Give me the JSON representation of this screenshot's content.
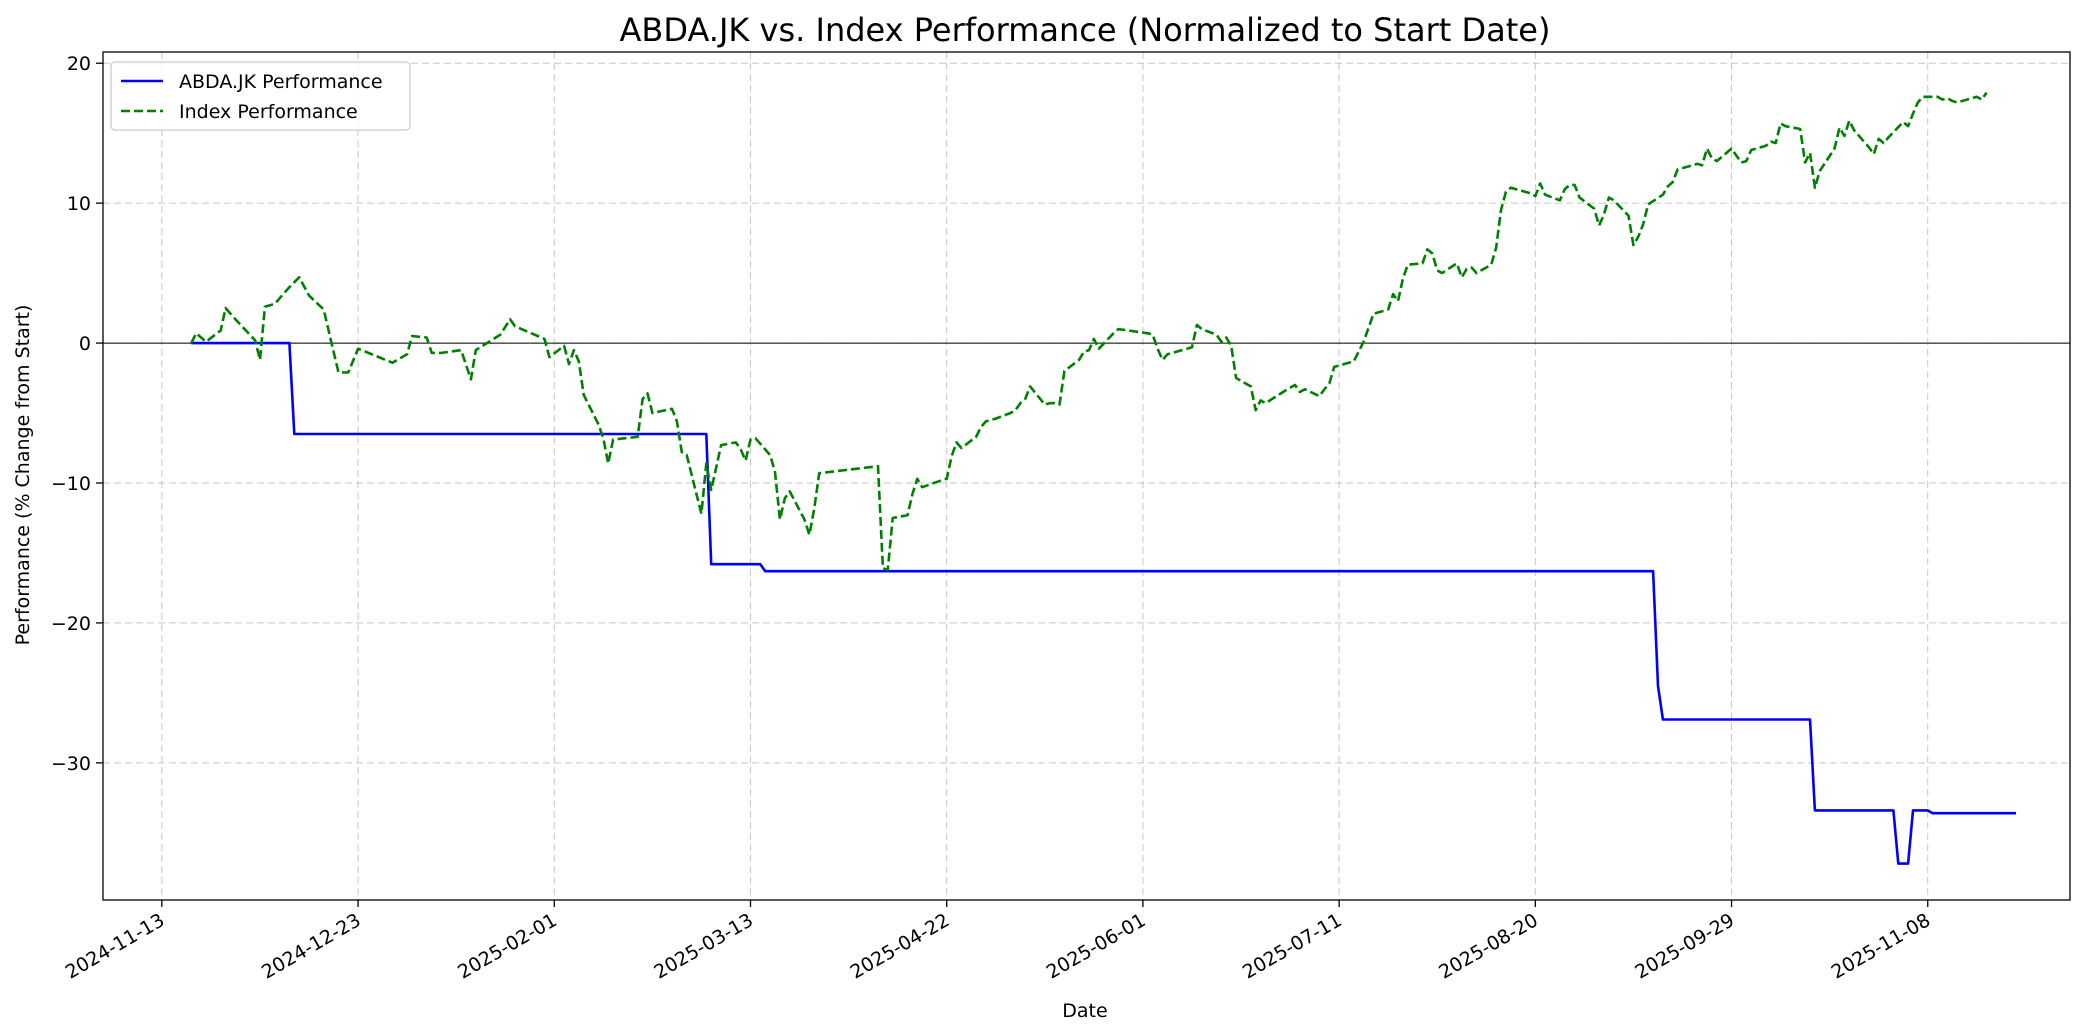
{
  "chart_data": {
    "type": "line",
    "title": "ABDA.JK vs. Index Performance (Normalized to Start Date)",
    "xlabel": "Date",
    "ylabel": "Performance (% Change from Start)",
    "x_range": [
      "2024-11-01",
      "2025-12-07"
    ],
    "ylim": [
      -39.8,
      20.8
    ],
    "x_ticks": [
      "2024-11-13",
      "2024-12-23",
      "2025-02-01",
      "2025-03-13",
      "2025-04-22",
      "2025-06-01",
      "2025-07-11",
      "2025-08-20",
      "2025-09-29",
      "2025-11-08"
    ],
    "y_ticks": [
      20,
      10,
      0,
      -10,
      -20,
      -30
    ],
    "y_tick_labels": [
      "20",
      "10",
      "0",
      "−10",
      "−20",
      "−30"
    ],
    "grid": true,
    "zero_line": true,
    "legend_position": "top-left",
    "series": [
      {
        "name": "ABDA.JK Performance",
        "color": "#0000ff",
        "style": "solid",
        "points": [
          [
            "2024-11-19",
            0
          ],
          [
            "2024-12-09",
            0
          ],
          [
            "2024-12-10",
            -6.5
          ],
          [
            "2025-03-04",
            -6.5
          ],
          [
            "2025-03-05",
            -15.8
          ],
          [
            "2025-03-15",
            -15.8
          ],
          [
            "2025-03-16",
            -16.3
          ],
          [
            "2025-09-13",
            -16.3
          ],
          [
            "2025-09-14",
            -24.5
          ],
          [
            "2025-09-15",
            -26.9
          ],
          [
            "2025-10-15",
            -26.9
          ],
          [
            "2025-10-16",
            -33.4
          ],
          [
            "2025-11-01",
            -33.4
          ],
          [
            "2025-11-02",
            -37.2
          ],
          [
            "2025-11-04",
            -37.2
          ],
          [
            "2025-11-05",
            -33.4
          ],
          [
            "2025-11-08",
            -33.4
          ],
          [
            "2025-11-09",
            -33.6
          ],
          [
            "2025-11-26",
            -33.6
          ]
        ]
      },
      {
        "name": "Index Performance",
        "color": "#008000",
        "style": "dashed",
        "points": [
          [
            "2024-11-19",
            0
          ],
          [
            "2024-11-20",
            0.7
          ],
          [
            "2024-11-22",
            0.1
          ],
          [
            "2024-11-25",
            0.9
          ],
          [
            "2024-11-26",
            2.5
          ],
          [
            "2024-11-28",
            1.7
          ],
          [
            "2024-12-02",
            0.2
          ],
          [
            "2024-12-03",
            -1.2
          ],
          [
            "2024-12-04",
            2.6
          ],
          [
            "2024-12-06",
            2.8
          ],
          [
            "2024-12-09",
            4.0
          ],
          [
            "2024-12-11",
            4.7
          ],
          [
            "2024-12-13",
            3.4
          ],
          [
            "2024-12-16",
            2.4
          ],
          [
            "2024-12-18",
            -0.6
          ],
          [
            "2024-12-19",
            -2.1
          ],
          [
            "2024-12-21",
            -2.1
          ],
          [
            "2024-12-23",
            -0.4
          ],
          [
            "2024-12-30",
            -1.4
          ],
          [
            "2025-01-02",
            -0.8
          ],
          [
            "2025-01-03",
            0.5
          ],
          [
            "2025-01-06",
            0.4
          ],
          [
            "2025-01-07",
            -0.7
          ],
          [
            "2025-01-09",
            -0.7
          ],
          [
            "2025-01-13",
            -0.5
          ],
          [
            "2025-01-15",
            -2.6
          ],
          [
            "2025-01-16",
            -0.5
          ],
          [
            "2025-01-21",
            0.6
          ],
          [
            "2025-01-23",
            1.7
          ],
          [
            "2025-01-24",
            1.2
          ],
          [
            "2025-01-30",
            0.3
          ],
          [
            "2025-01-31",
            -1.0
          ],
          [
            "2025-02-03",
            -0.2
          ],
          [
            "2025-02-04",
            -1.5
          ],
          [
            "2025-02-05",
            -0.5
          ],
          [
            "2025-02-06",
            -1.3
          ],
          [
            "2025-02-07",
            -3.7
          ],
          [
            "2025-02-10",
            -5.8
          ],
          [
            "2025-02-11",
            -6.8
          ],
          [
            "2025-02-12",
            -8.6
          ],
          [
            "2025-02-13",
            -6.9
          ],
          [
            "2025-02-18",
            -6.7
          ],
          [
            "2025-02-19",
            -4.0
          ],
          [
            "2025-02-20",
            -3.6
          ],
          [
            "2025-02-21",
            -5.0
          ],
          [
            "2025-02-25",
            -4.7
          ],
          [
            "2025-02-26",
            -5.6
          ],
          [
            "2025-02-27",
            -7.8
          ],
          [
            "2025-02-28",
            -8.0
          ],
          [
            "2025-03-03",
            -12.2
          ],
          [
            "2025-03-04",
            -8.6
          ],
          [
            "2025-03-05",
            -10.5
          ],
          [
            "2025-03-07",
            -7.3
          ],
          [
            "2025-03-10",
            -7.1
          ],
          [
            "2025-03-11",
            -7.6
          ],
          [
            "2025-03-12",
            -8.4
          ],
          [
            "2025-03-13",
            -6.9
          ],
          [
            "2025-03-14",
            -6.8
          ],
          [
            "2025-03-17",
            -8.0
          ],
          [
            "2025-03-18",
            -9.2
          ],
          [
            "2025-03-19",
            -12.6
          ],
          [
            "2025-03-20",
            -11.1
          ],
          [
            "2025-03-21",
            -10.6
          ],
          [
            "2025-03-24",
            -12.6
          ],
          [
            "2025-03-25",
            -13.7
          ],
          [
            "2025-03-26",
            -11.8
          ],
          [
            "2025-03-27",
            -9.3
          ],
          [
            "2025-04-08",
            -8.8
          ],
          [
            "2025-04-09",
            -16.1
          ],
          [
            "2025-04-10",
            -16.2
          ],
          [
            "2025-04-11",
            -12.5
          ],
          [
            "2025-04-14",
            -12.3
          ],
          [
            "2025-04-15",
            -10.8
          ],
          [
            "2025-04-16",
            -9.7
          ],
          [
            "2025-04-17",
            -10.3
          ],
          [
            "2025-04-21",
            -9.8
          ],
          [
            "2025-04-22",
            -9.7
          ],
          [
            "2025-04-23",
            -8.1
          ],
          [
            "2025-04-24",
            -7.1
          ],
          [
            "2025-04-25",
            -7.5
          ],
          [
            "2025-04-28",
            -6.7
          ],
          [
            "2025-04-29",
            -6.0
          ],
          [
            "2025-04-30",
            -5.6
          ],
          [
            "2025-05-02",
            -5.4
          ],
          [
            "2025-05-05",
            -5.0
          ],
          [
            "2025-05-06",
            -4.8
          ],
          [
            "2025-05-07",
            -4.3
          ],
          [
            "2025-05-08",
            -4.0
          ],
          [
            "2025-05-09",
            -3.1
          ],
          [
            "2025-05-12",
            -4.4
          ],
          [
            "2025-05-13",
            -4.3
          ],
          [
            "2025-05-14",
            -4.3
          ],
          [
            "2025-05-15",
            -4.4
          ],
          [
            "2025-05-16",
            -2.0
          ],
          [
            "2025-05-19",
            -1.2
          ],
          [
            "2025-05-20",
            -0.6
          ],
          [
            "2025-05-21",
            -0.5
          ],
          [
            "2025-05-22",
            0.3
          ],
          [
            "2025-05-23",
            -0.4
          ],
          [
            "2025-05-26",
            0.7
          ],
          [
            "2025-05-27",
            1.0
          ],
          [
            "2025-06-02",
            0.7
          ],
          [
            "2025-06-03",
            0.6
          ],
          [
            "2025-06-04",
            -0.4
          ],
          [
            "2025-06-05",
            -1.2
          ],
          [
            "2025-06-06",
            -0.8
          ],
          [
            "2025-06-10",
            -0.4
          ],
          [
            "2025-06-11",
            -0.3
          ],
          [
            "2025-06-12",
            1.3
          ],
          [
            "2025-06-13",
            1.0
          ],
          [
            "2025-06-16",
            0.6
          ],
          [
            "2025-06-17",
            0.1
          ],
          [
            "2025-06-18",
            0.4
          ],
          [
            "2025-06-19",
            -0.2
          ],
          [
            "2025-06-20",
            -2.5
          ],
          [
            "2025-06-23",
            -3.1
          ],
          [
            "2025-06-24",
            -4.8
          ],
          [
            "2025-06-25",
            -4.1
          ],
          [
            "2025-06-26",
            -4.3
          ],
          [
            "2025-06-30",
            -3.4
          ],
          [
            "2025-07-01",
            -3.2
          ],
          [
            "2025-07-02",
            -3.0
          ],
          [
            "2025-07-03",
            -3.5
          ],
          [
            "2025-07-04",
            -3.3
          ],
          [
            "2025-07-07",
            -3.8
          ],
          [
            "2025-07-08",
            -3.3
          ],
          [
            "2025-07-09",
            -2.9
          ],
          [
            "2025-07-10",
            -1.7
          ],
          [
            "2025-07-11",
            -1.6
          ],
          [
            "2025-07-14",
            -1.3
          ],
          [
            "2025-07-15",
            -0.6
          ],
          [
            "2025-07-16",
            0.1
          ],
          [
            "2025-07-17",
            1.1
          ],
          [
            "2025-07-18",
            2.1
          ],
          [
            "2025-07-21",
            2.4
          ],
          [
            "2025-07-22",
            3.5
          ],
          [
            "2025-07-23",
            3.0
          ],
          [
            "2025-07-24",
            4.6
          ],
          [
            "2025-07-25",
            5.6
          ],
          [
            "2025-07-28",
            5.7
          ],
          [
            "2025-07-29",
            6.7
          ],
          [
            "2025-07-30",
            6.4
          ],
          [
            "2025-07-31",
            5.2
          ],
          [
            "2025-08-01",
            5.0
          ],
          [
            "2025-08-04",
            5.7
          ],
          [
            "2025-08-05",
            4.7
          ],
          [
            "2025-08-06",
            5.3
          ],
          [
            "2025-08-07",
            5.4
          ],
          [
            "2025-08-08",
            5.0
          ],
          [
            "2025-08-11",
            5.6
          ],
          [
            "2025-08-12",
            6.8
          ],
          [
            "2025-08-13",
            9.5
          ],
          [
            "2025-08-14",
            10.8
          ],
          [
            "2025-08-15",
            11.1
          ],
          [
            "2025-08-19",
            10.7
          ],
          [
            "2025-08-20",
            10.5
          ],
          [
            "2025-08-21",
            11.4
          ],
          [
            "2025-08-22",
            10.6
          ],
          [
            "2025-08-25",
            10.2
          ],
          [
            "2025-08-26",
            11.0
          ],
          [
            "2025-08-27",
            11.3
          ],
          [
            "2025-08-28",
            11.3
          ],
          [
            "2025-08-29",
            10.4
          ],
          [
            "2025-09-01",
            9.6
          ],
          [
            "2025-09-02",
            8.4
          ],
          [
            "2025-09-03",
            9.2
          ],
          [
            "2025-09-04",
            10.4
          ],
          [
            "2025-09-05",
            10.2
          ],
          [
            "2025-09-08",
            9.1
          ],
          [
            "2025-09-09",
            7.0
          ],
          [
            "2025-09-10",
            7.6
          ],
          [
            "2025-09-11",
            8.5
          ],
          [
            "2025-09-12",
            9.9
          ],
          [
            "2025-09-15",
            10.6
          ],
          [
            "2025-09-16",
            11.2
          ],
          [
            "2025-09-17",
            11.5
          ],
          [
            "2025-09-18",
            12.4
          ],
          [
            "2025-09-19",
            12.5
          ],
          [
            "2025-09-22",
            12.8
          ],
          [
            "2025-09-23",
            12.7
          ],
          [
            "2025-09-24",
            13.9
          ],
          [
            "2025-09-25",
            13.2
          ],
          [
            "2025-09-26",
            13.0
          ],
          [
            "2025-09-29",
            13.9
          ],
          [
            "2025-09-30",
            13.4
          ],
          [
            "2025-10-01",
            12.9
          ],
          [
            "2025-10-02",
            13.0
          ],
          [
            "2025-10-03",
            13.8
          ],
          [
            "2025-10-06",
            14.1
          ],
          [
            "2025-10-07",
            14.4
          ],
          [
            "2025-10-08",
            14.3
          ],
          [
            "2025-10-09",
            15.7
          ],
          [
            "2025-10-10",
            15.5
          ],
          [
            "2025-10-13",
            15.3
          ],
          [
            "2025-10-14",
            12.9
          ],
          [
            "2025-10-15",
            13.6
          ],
          [
            "2025-10-16",
            11.1
          ],
          [
            "2025-10-17",
            12.3
          ],
          [
            "2025-10-20",
            13.9
          ],
          [
            "2025-10-21",
            15.4
          ],
          [
            "2025-10-22",
            14.8
          ],
          [
            "2025-10-23",
            15.9
          ],
          [
            "2025-10-24",
            15.2
          ],
          [
            "2025-10-27",
            14.0
          ],
          [
            "2025-10-28",
            13.5
          ],
          [
            "2025-10-29",
            14.6
          ],
          [
            "2025-10-30",
            14.3
          ],
          [
            "2025-10-31",
            14.7
          ],
          [
            "2025-11-03",
            15.8
          ],
          [
            "2025-11-04",
            15.5
          ],
          [
            "2025-11-05",
            16.4
          ],
          [
            "2025-11-06",
            17.2
          ],
          [
            "2025-11-07",
            17.6
          ],
          [
            "2025-11-10",
            17.6
          ],
          [
            "2025-11-11",
            17.4
          ],
          [
            "2025-11-12",
            17.5
          ],
          [
            "2025-11-13",
            17.3
          ],
          [
            "2025-11-14",
            17.2
          ],
          [
            "2025-11-17",
            17.5
          ],
          [
            "2025-11-18",
            17.6
          ],
          [
            "2025-11-19",
            17.4
          ],
          [
            "2025-11-20",
            17.9
          ]
        ]
      }
    ]
  }
}
